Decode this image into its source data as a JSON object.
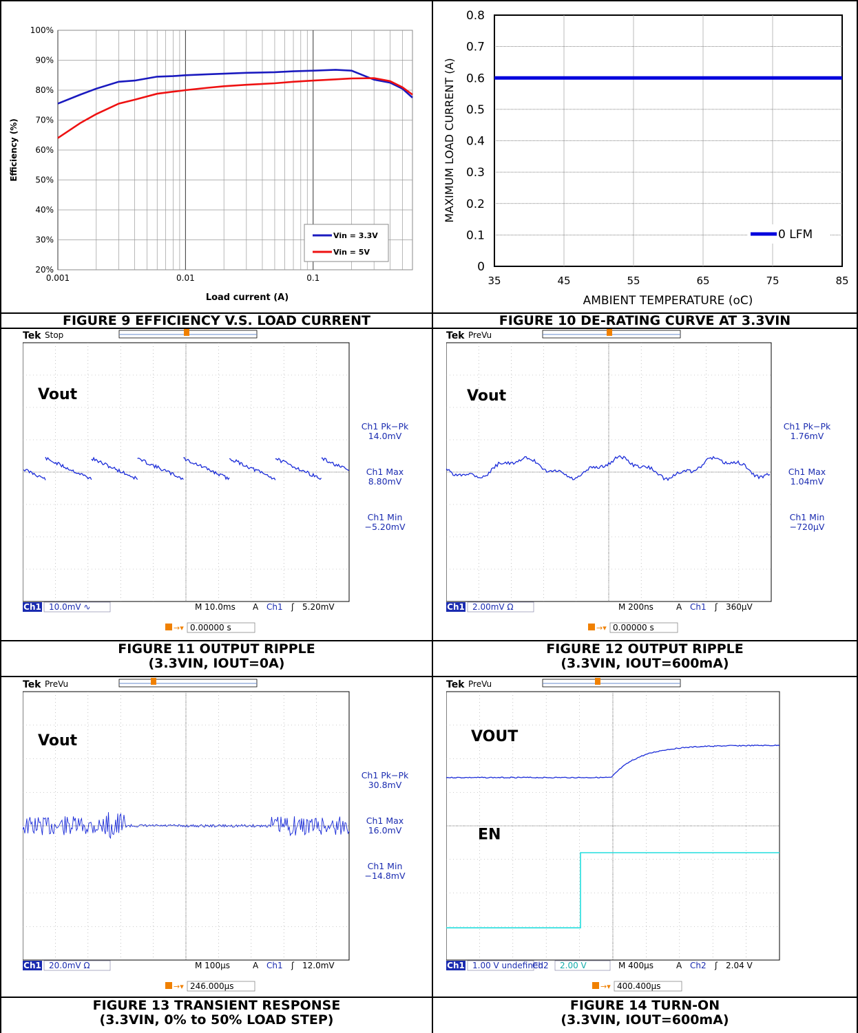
{
  "figures": {
    "fig9": {
      "caption": "FIGURE 9 EFFICIENCY V.S. LOAD CURRENT",
      "chart_data": {
        "type": "line",
        "xlabel": "Load current (A)",
        "ylabel": "Efficiency (%)",
        "x_scale": "log",
        "xlim": [
          0.001,
          0.6
        ],
        "ylim": [
          20,
          100
        ],
        "x_ticks": [
          "0.001",
          "0.01",
          "0.1"
        ],
        "y_ticks": [
          "20%",
          "30%",
          "40%",
          "50%",
          "60%",
          "70%",
          "80%",
          "90%",
          "100%"
        ],
        "grid": true,
        "legend_position": "bottom-right",
        "series": [
          {
            "name": "Vin = 3.3V",
            "color": "#1a1abf",
            "x": [
              0.001,
              0.0015,
              0.002,
              0.003,
              0.004,
              0.006,
              0.008,
              0.01,
              0.015,
              0.02,
              0.03,
              0.05,
              0.07,
              0.1,
              0.15,
              0.2,
              0.3,
              0.4,
              0.5,
              0.6
            ],
            "y": [
              75.5,
              78.5,
              80.5,
              82.8,
              83.2,
              84.5,
              84.7,
              85.0,
              85.3,
              85.5,
              85.8,
              86.0,
              86.3,
              86.5,
              86.8,
              86.5,
              83.5,
              82.5,
              80.5,
              77.5
            ]
          },
          {
            "name": "Vin = 5V",
            "color": "#ee1111",
            "x": [
              0.001,
              0.0015,
              0.002,
              0.003,
              0.004,
              0.006,
              0.008,
              0.01,
              0.015,
              0.02,
              0.03,
              0.05,
              0.07,
              0.1,
              0.15,
              0.2,
              0.3,
              0.4,
              0.5,
              0.6
            ],
            "y": [
              64.0,
              69.0,
              72.0,
              75.5,
              76.8,
              78.8,
              79.5,
              80.0,
              80.8,
              81.3,
              81.8,
              82.3,
              82.8,
              83.2,
              83.6,
              83.9,
              84.0,
              83.0,
              81.0,
              78.5
            ]
          }
        ]
      }
    },
    "fig10": {
      "caption": "FIGURE 10 DE-RATING CURVE AT 3.3VIN",
      "chart_data": {
        "type": "line",
        "xlabel": "AMBIENT TEMPERATURE (oC)",
        "ylabel": "MAXIMUM LOAD CURRENT (A)",
        "xlim": [
          35,
          85
        ],
        "ylim": [
          0,
          0.8
        ],
        "x_ticks": [
          "35",
          "45",
          "55",
          "65",
          "75",
          "85"
        ],
        "y_ticks": [
          "0",
          "0.1",
          "0.2",
          "0.3",
          "0.4",
          "0.5",
          "0.6",
          "0.7",
          "0.8"
        ],
        "grid": true,
        "legend_position": "bottom-right",
        "series": [
          {
            "name": "0 LFM",
            "color": "#0000dd",
            "x": [
              35,
              85
            ],
            "y": [
              0.6,
              0.6
            ]
          }
        ]
      }
    },
    "fig11": {
      "caption_line1": "FIGURE 11 OUTPUT RIPPLE",
      "caption_line2": "(3.3VIN, IOUT=0A)",
      "scope": {
        "brand": "Tek",
        "status": "Stop",
        "trace1_label": "Vout",
        "meas": [
          {
            "title": "Ch1 Pk−Pk",
            "value": "14.0mV"
          },
          {
            "title": "Ch1 Max",
            "value": "8.80mV"
          },
          {
            "title": "Ch1 Min",
            "value": "−5.20mV"
          }
        ],
        "ch_badge": "Ch1",
        "ch1_scale": "10.0mV",
        "ch1_coupling": "∿",
        "timebase": "M 10.0ms",
        "trig_mode": "A",
        "trig_src": "Ch1",
        "trig_slope": "ʃ",
        "trig_level": "5.20mV",
        "trig_pos": "0.00000 s",
        "marker1": "1"
      }
    },
    "fig12": {
      "caption_line1": "FIGURE 12 OUTPUT RIPPLE",
      "caption_line2": "(3.3VIN, IOUT=600mA)",
      "scope": {
        "brand": "Tek",
        "status": "PreVu",
        "trace1_label": "Vout",
        "meas": [
          {
            "title": "Ch1 Pk−Pk",
            "value": "1.76mV"
          },
          {
            "title": "Ch1 Max",
            "value": "1.04mV"
          },
          {
            "title": "Ch1 Min",
            "value": "−720µV"
          }
        ],
        "ch_badge": "Ch1",
        "ch1_scale": "2.00mV",
        "ch1_coupling": "Ω",
        "timebase": "M 200ns",
        "trig_mode": "A",
        "trig_src": "Ch1",
        "trig_slope": "ʃ",
        "trig_level": "360µV",
        "trig_pos": "0.00000 s",
        "marker1": "1"
      }
    },
    "fig13": {
      "caption_line1": "FIGURE 13 TRANSIENT RESPONSE",
      "caption_line2": "(3.3VIN, 0% to 50% LOAD STEP)",
      "scope": {
        "brand": "Tek",
        "status": "PreVu",
        "trace1_label": "Vout",
        "meas": [
          {
            "title": "Ch1 Pk−Pk",
            "value": "30.8mV"
          },
          {
            "title": "Ch1 Max",
            "value": "16.0mV"
          },
          {
            "title": "Ch1 Min",
            "value": "−14.8mV"
          }
        ],
        "ch_badge": "Ch1",
        "ch1_scale": "20.0mV",
        "ch1_coupling": "Ω",
        "timebase": "M 100µs",
        "trig_mode": "A",
        "trig_src": "Ch1",
        "trig_slope": "ʃ",
        "trig_level": "12.0mV",
        "trig_pos": "246.000µs",
        "marker1": "1"
      }
    },
    "fig14": {
      "caption_line1": "FIGURE 14 TURN-ON",
      "caption_line2": "(3.3VIN, IOUT=600mA)",
      "scope": {
        "brand": "Tek",
        "status": "PreVu",
        "trace1_label": "VOUT",
        "trace2_label": "EN",
        "ch_badge": "Ch1",
        "ch1_scale": "1.00 V",
        "ch2_label": "Ch2",
        "ch2_scale": "2.00 V",
        "timebase": "M 400µs",
        "trig_mode": "A",
        "trig_src": "Ch2",
        "trig_slope": "ʃ",
        "trig_level": "2.04 V",
        "trig_pos": "400.400µs",
        "marker1": "1",
        "marker2": "2"
      }
    }
  }
}
